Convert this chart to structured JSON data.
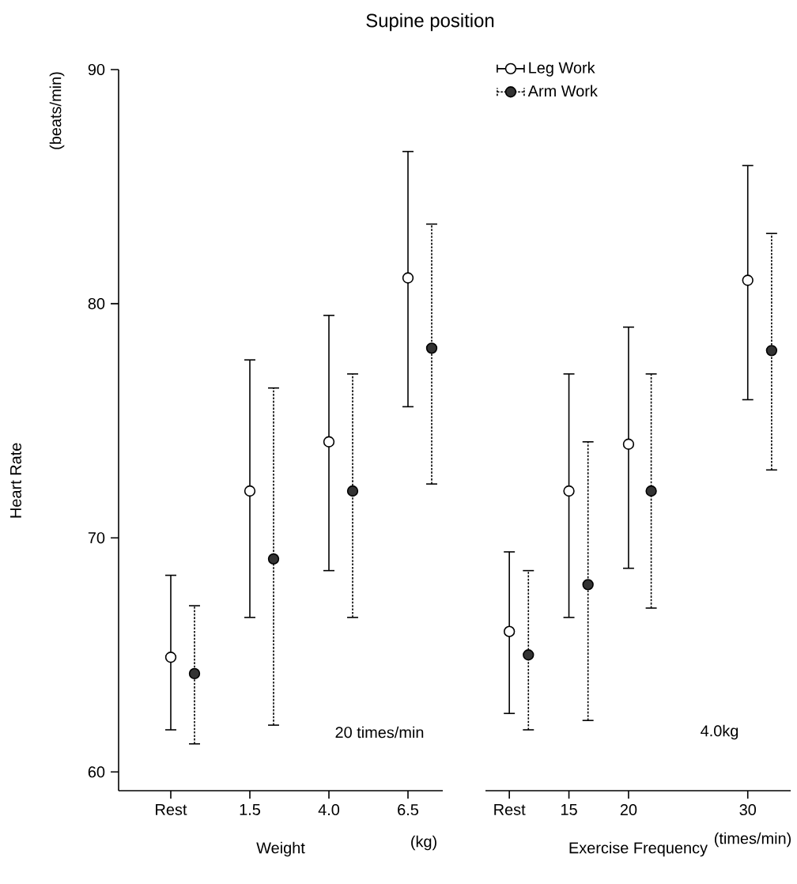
{
  "chart_data": [
    {
      "type": "scatter",
      "title": "Supine position",
      "xlabel": "Weight",
      "ylabel": "Heart Rate",
      "categories": [
        "Rest",
        "1.5",
        "4.0",
        "6.5"
      ],
      "ylim": [
        59.2,
        90
      ],
      "yticks": [
        60,
        70,
        80,
        90
      ],
      "tick_labels": "xy",
      "legend": false,
      "annotations": [
        "20 times/min",
        "(kg)",
        "(beats/min)"
      ],
      "series": [
        {
          "color": "#ffffff",
          "line_style": "solid",
          "values": [
            64.9,
            72,
            74.1,
            81.1
          ],
          "errors": [
            [
              61.8,
              68.4
            ],
            [
              66.6,
              77.6
            ],
            [
              68.6,
              79.5
            ],
            [
              75.6,
              86.5
            ]
          ]
        },
        {
          "color": "#333333",
          "line_style": "dotted",
          "values": [
            64.2,
            69.1,
            72,
            78.1
          ],
          "errors": [
            [
              61.2,
              67.1
            ],
            [
              62,
              76.4
            ],
            [
              66.6,
              77
            ],
            [
              72.3,
              83.4
            ]
          ]
        }
      ]
    },
    {
      "type": "scatter",
      "xlabel": "Exercise Frequency",
      "x": [
        10,
        15,
        20,
        30
      ],
      "xlim": [
        8,
        33.6
      ],
      "xticks": [
        {
          "value": 10,
          "label": "Rest"
        },
        15,
        20,
        30
      ],
      "ylim": [
        59.2,
        90
      ],
      "tick_labels": "x",
      "legend": "top left",
      "annotations": [
        "4.0kg",
        "(times/min)"
      ],
      "series": [
        {
          "name": "Leg Work",
          "color": "#ffffff",
          "line_style": "solid",
          "values": [
            66,
            72,
            74,
            81
          ],
          "errors": [
            [
              62.5,
              69.4
            ],
            [
              66.6,
              77
            ],
            [
              68.7,
              79
            ],
            [
              75.9,
              85.9
            ]
          ]
        },
        {
          "name": "Arm Work",
          "color": "#333333",
          "line_style": "dotted",
          "x": [
            11.6,
            16.6,
            21.9,
            32
          ],
          "values": [
            65,
            68,
            72,
            78
          ],
          "errors": [
            [
              61.8,
              68.6
            ],
            [
              62.2,
              74.1
            ],
            [
              67,
              77
            ],
            [
              72.9,
              83
            ]
          ]
        }
      ]
    }
  ]
}
